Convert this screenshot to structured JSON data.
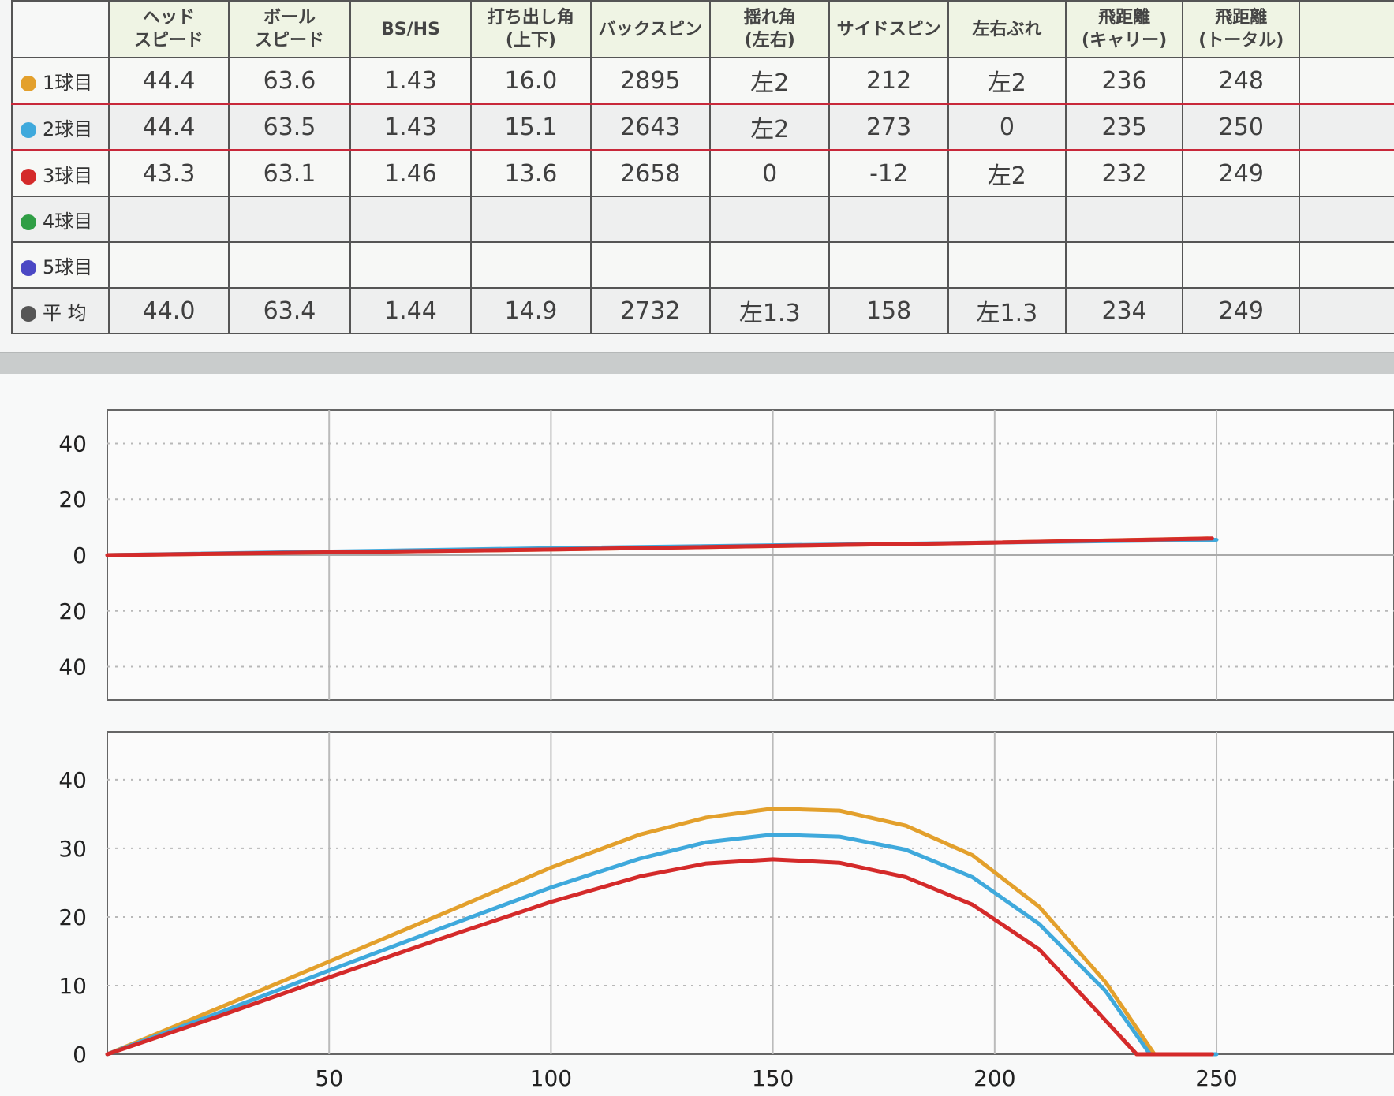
{
  "table": {
    "headers": [
      "",
      "ヘッド\nスピード",
      "ボール\nスピード",
      "BS/HS",
      "打ち出し角\n(上下)",
      "バックスピン",
      "揺れ角\n(左右)",
      "サイドスピン",
      "左右ぶれ",
      "飛距離\n(キャリー)",
      "飛距離\n(トータル)",
      ""
    ],
    "rows": [
      {
        "label": "1球目",
        "color": "#e3a02c",
        "cells": [
          "44.4",
          "63.6",
          "1.43",
          "16.0",
          "2895",
          "左2",
          "212",
          "左2",
          "236",
          "248",
          ""
        ]
      },
      {
        "label": "2球目",
        "color": "#3fa9dc",
        "cells": [
          "44.4",
          "63.5",
          "1.43",
          "15.1",
          "2643",
          "左2",
          "273",
          "0",
          "235",
          "250",
          ""
        ]
      },
      {
        "label": "3球目",
        "color": "#d42a2a",
        "cells": [
          "43.3",
          "63.1",
          "1.46",
          "13.6",
          "2658",
          "0",
          "-12",
          "左2",
          "232",
          "249",
          ""
        ]
      },
      {
        "label": "4球目",
        "color": "#2f9e45",
        "cells": [
          "",
          "",
          "",
          "",
          "",
          "",
          "",
          "",
          "",
          "",
          ""
        ]
      },
      {
        "label": "5球目",
        "color": "#4b48c4",
        "cells": [
          "",
          "",
          "",
          "",
          "",
          "",
          "",
          "",
          "",
          "",
          ""
        ]
      },
      {
        "label": "平 均",
        "color": "#555555",
        "cells": [
          "44.0",
          "63.4",
          "1.44",
          "14.9",
          "2732",
          "左1.3",
          "158",
          "左1.3",
          "234",
          "249",
          ""
        ]
      }
    ]
  },
  "chart_data": [
    {
      "type": "line",
      "title": "",
      "xlabel": "",
      "ylabel": "",
      "xlim": [
        0,
        290
      ],
      "ylim": [
        -52,
        52
      ],
      "x_ticks": [],
      "y_ticks": [
        {
          "value": 40,
          "label": "40"
        },
        {
          "value": 20,
          "label": "20"
        },
        {
          "value": 0,
          "label": "0"
        },
        {
          "value": -20,
          "label": "20"
        },
        {
          "value": -40,
          "label": "40"
        }
      ],
      "x_gridlines": [
        50,
        100,
        150,
        200,
        250
      ],
      "grid": true,
      "series": [
        {
          "color": "#e3a02c",
          "points": [
            [
              0,
              0
            ],
            [
              100,
              2
            ],
            [
              200,
              4.5
            ],
            [
              248,
              6
            ]
          ]
        },
        {
          "color": "#3fa9dc",
          "points": [
            [
              0,
              0
            ],
            [
              100,
              2.5
            ],
            [
              200,
              4.5
            ],
            [
              250,
              5.5
            ]
          ]
        },
        {
          "color": "#d42a2a",
          "points": [
            [
              0,
              0
            ],
            [
              100,
              2
            ],
            [
              200,
              4.5
            ],
            [
              249,
              6
            ]
          ]
        }
      ]
    },
    {
      "type": "line",
      "title": "",
      "xlabel": "",
      "ylabel": "",
      "xlim": [
        0,
        290
      ],
      "ylim": [
        0,
        47
      ],
      "x_ticks": [
        50,
        100,
        150,
        200,
        250
      ],
      "y_ticks": [
        {
          "value": 40,
          "label": "40"
        },
        {
          "value": 30,
          "label": "30"
        },
        {
          "value": 20,
          "label": "20"
        },
        {
          "value": 10,
          "label": "10"
        },
        {
          "value": 0,
          "label": "0"
        }
      ],
      "grid": true,
      "series": [
        {
          "color": "#e3a02c",
          "carry": 236,
          "total": 248,
          "points": [
            [
              0,
              0
            ],
            [
              25,
              6.7
            ],
            [
              50,
              13.5
            ],
            [
              75,
              20.3
            ],
            [
              100,
              27.2
            ],
            [
              120,
              32.0
            ],
            [
              135,
              34.5
            ],
            [
              150,
              35.8
            ],
            [
              165,
              35.5
            ],
            [
              180,
              33.3
            ],
            [
              195,
              29.0
            ],
            [
              210,
              21.5
            ],
            [
              225,
              10.5
            ],
            [
              236,
              0
            ]
          ]
        },
        {
          "color": "#3fa9dc",
          "carry": 235,
          "total": 250,
          "points": [
            [
              0,
              0
            ],
            [
              25,
              6.0
            ],
            [
              50,
              12.2
            ],
            [
              75,
              18.3
            ],
            [
              100,
              24.3
            ],
            [
              120,
              28.5
            ],
            [
              135,
              30.9
            ],
            [
              150,
              32.0
            ],
            [
              165,
              31.7
            ],
            [
              180,
              29.8
            ],
            [
              195,
              25.8
            ],
            [
              210,
              19.0
            ],
            [
              225,
              9.2
            ],
            [
              235,
              0
            ]
          ]
        },
        {
          "color": "#d42a2a",
          "carry": 232,
          "total": 249,
          "points": [
            [
              0,
              0
            ],
            [
              25,
              5.5
            ],
            [
              50,
              11.2
            ],
            [
              75,
              16.8
            ],
            [
              100,
              22.2
            ],
            [
              120,
              25.9
            ],
            [
              135,
              27.8
            ],
            [
              150,
              28.4
            ],
            [
              165,
              27.9
            ],
            [
              180,
              25.8
            ],
            [
              195,
              21.8
            ],
            [
              210,
              15.3
            ],
            [
              222,
              7.0
            ],
            [
              232,
              0
            ]
          ]
        }
      ]
    }
  ]
}
